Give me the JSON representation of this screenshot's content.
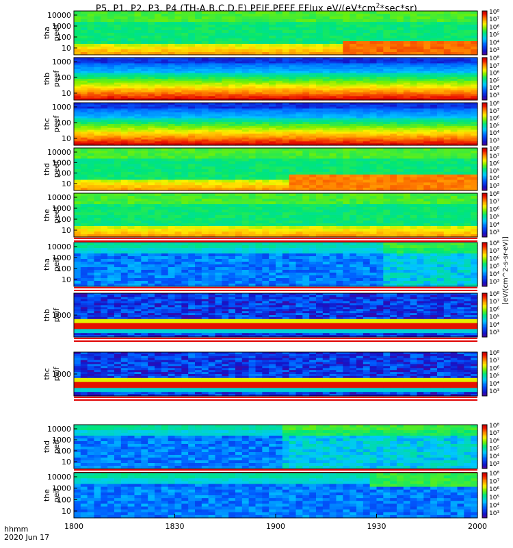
{
  "title_pre": "P5, P1, P2, P3, P4 (TH-A,B,C,D,E) PEIF,PEEF EFlux eV/(eV*cm",
  "title_sup": "2",
  "title_post": "*sec*sr)",
  "time_axis": {
    "label_line1": "hhmm",
    "label_line2": "2020 Jun 17",
    "ticks": [
      "1800",
      "1830",
      "1900",
      "1930",
      "2000"
    ]
  },
  "colorbar_label": "[eV/(cm^2-s-sr-eV)]",
  "colorbar_tick_labels": [
    "10³",
    "10⁴",
    "10⁵",
    "10⁶",
    "10⁷",
    "10⁸"
  ],
  "chart_data": {
    "type": "heatmap",
    "x_range": [
      "1800",
      "2000"
    ],
    "y_scale": "log",
    "colormap": "rainbow (blue-cyan-green-yellow-red)",
    "colorbar_range": [
      "10³",
      "10⁸"
    ],
    "panels": [
      {
        "probe": "tha",
        "species": "peef",
        "ylabel": [
          "tha",
          "peef"
        ],
        "ytick_labels": [
          "10000",
          "1000",
          "100",
          "10"
        ],
        "ylim": [
          5,
          30000
        ],
        "pattern": "electron",
        "flag_row": false
      },
      {
        "probe": "thb",
        "species": "peef",
        "ylabel": [
          "thb",
          "peef"
        ],
        "ytick_labels": [
          "1000",
          "100",
          "10"
        ],
        "ylim": [
          5,
          3000
        ],
        "pattern": "bands",
        "flag_row": false
      },
      {
        "probe": "thc",
        "species": "peef",
        "ylabel": [
          "thc",
          "peef"
        ],
        "ytick_labels": [
          "1000",
          "100",
          "10"
        ],
        "ylim": [
          5,
          3000
        ],
        "pattern": "bands",
        "flag_row": false
      },
      {
        "probe": "thd",
        "species": "peef",
        "ylabel": [
          "thd",
          "peef"
        ],
        "ytick_labels": [
          "10000",
          "1000",
          "100",
          "10"
        ],
        "ylim": [
          5,
          30000
        ],
        "pattern": "electron",
        "flag_row": false
      },
      {
        "probe": "the",
        "species": "peef",
        "ylabel": [
          "the",
          "peef"
        ],
        "ytick_labels": [
          "10000",
          "1000",
          "100",
          "10"
        ],
        "ylim": [
          5,
          30000
        ],
        "pattern": "electron-quiet",
        "flag_row": true
      },
      {
        "probe": "tha",
        "species": "peif",
        "ylabel": [
          "tha",
          "peif"
        ],
        "ytick_labels": [
          "10000",
          "1000",
          "100",
          "10"
        ],
        "ylim": [
          5,
          30000
        ],
        "pattern": "ion",
        "flag_row": true
      },
      {
        "probe": "thb",
        "species": "peif",
        "ylabel": [
          "thb",
          "peif"
        ],
        "ytick_labels": [
          "1000"
        ],
        "ylim": [
          5,
          30000
        ],
        "pattern": "ion-bands",
        "flag_row": true
      },
      {
        "probe": "thc",
        "species": "peif",
        "ylabel": [
          "thc",
          "peif"
        ],
        "ytick_labels": [
          "1000"
        ],
        "ylim": [
          5,
          30000
        ],
        "pattern": "ion-bands",
        "flag_row": true
      },
      {
        "probe": "thd",
        "species": "peif",
        "ylabel": [
          "thd",
          "peif"
        ],
        "ytick_labels": [
          "10000",
          "1000",
          "100",
          "10"
        ],
        "ylim": [
          5,
          30000
        ],
        "pattern": "ion",
        "flag_row": true
      },
      {
        "probe": "the",
        "species": "peif",
        "ylabel": [
          "the",
          "peif"
        ],
        "ytick_labels": [
          "10000",
          "1000",
          "100",
          "10"
        ],
        "ylim": [
          5,
          30000
        ],
        "pattern": "ion-e",
        "flag_row": false
      }
    ]
  }
}
